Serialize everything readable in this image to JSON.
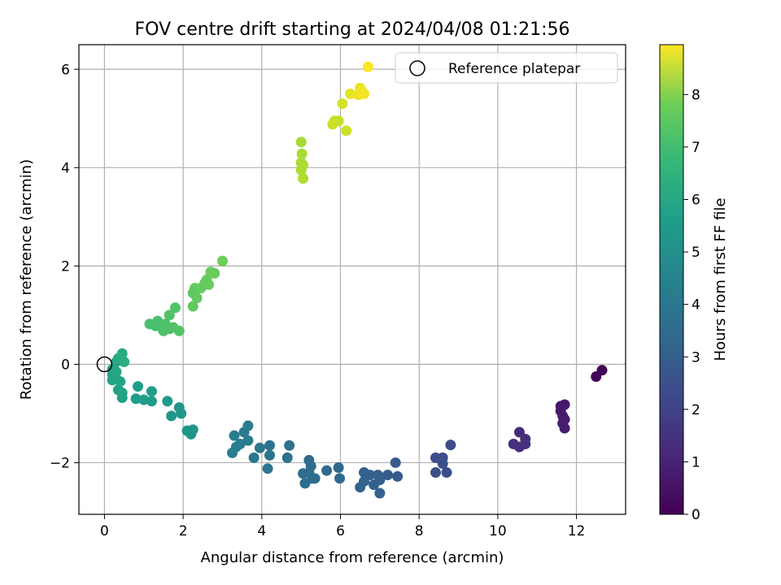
{
  "chart_data": {
    "type": "scatter",
    "title": "FOV centre drift starting at 2024/04/08 01:21:56",
    "xlabel": "Angular distance from reference (arcmin)",
    "ylabel": "Rotation from reference (arcmin)",
    "xlim": [
      -0.65,
      13.25
    ],
    "ylim": [
      -3.05,
      6.5
    ],
    "x_ticks": [
      0,
      2,
      4,
      6,
      8,
      10,
      12
    ],
    "y_ticks": [
      -2,
      0,
      2,
      4,
      6
    ],
    "x_tick_labels": [
      "0",
      "2",
      "4",
      "6",
      "8",
      "10",
      "12"
    ],
    "y_tick_labels": [
      "−2",
      "0",
      "2",
      "4",
      "6"
    ],
    "grid": true,
    "legend": {
      "placement": "top-right",
      "entries": [
        "Reference platepar"
      ]
    },
    "reference_point": {
      "x": 0,
      "y": 0
    },
    "colorbar": {
      "label": "Hours from first FF file",
      "colormap": "viridis",
      "range": [
        0,
        8.95
      ],
      "ticks": [
        0,
        1,
        2,
        3,
        4,
        5,
        6,
        7,
        8
      ],
      "tick_labels": [
        "0",
        "1",
        "2",
        "3",
        "4",
        "5",
        "6",
        "7",
        "8"
      ]
    },
    "points": [
      {
        "x": 12.65,
        "y": -0.12,
        "h": 0.05
      },
      {
        "x": 12.5,
        "y": -0.25,
        "h": 0.1
      },
      {
        "x": 11.6,
        "y": -0.85,
        "h": 0.6
      },
      {
        "x": 11.7,
        "y": -0.82,
        "h": 0.62
      },
      {
        "x": 11.6,
        "y": -0.95,
        "h": 0.65
      },
      {
        "x": 11.65,
        "y": -1.05,
        "h": 0.68
      },
      {
        "x": 11.7,
        "y": -1.12,
        "h": 0.7
      },
      {
        "x": 11.65,
        "y": -1.2,
        "h": 0.72
      },
      {
        "x": 11.7,
        "y": -1.3,
        "h": 0.75
      },
      {
        "x": 10.55,
        "y": -1.38,
        "h": 1.15
      },
      {
        "x": 10.4,
        "y": -1.62,
        "h": 1.2
      },
      {
        "x": 10.55,
        "y": -1.68,
        "h": 1.22
      },
      {
        "x": 10.7,
        "y": -1.52,
        "h": 1.25
      },
      {
        "x": 10.7,
        "y": -1.62,
        "h": 1.28
      },
      {
        "x": 8.8,
        "y": -1.64,
        "h": 2.05
      },
      {
        "x": 8.7,
        "y": -2.2,
        "h": 2.08
      },
      {
        "x": 8.6,
        "y": -1.9,
        "h": 2.1
      },
      {
        "x": 8.42,
        "y": -1.9,
        "h": 2.12
      },
      {
        "x": 8.6,
        "y": -2.02,
        "h": 2.15
      },
      {
        "x": 8.42,
        "y": -2.2,
        "h": 2.18
      },
      {
        "x": 7.4,
        "y": -2.0,
        "h": 2.6
      },
      {
        "x": 7.45,
        "y": -2.28,
        "h": 2.62
      },
      {
        "x": 7.2,
        "y": -2.25,
        "h": 2.64
      },
      {
        "x": 7.0,
        "y": -2.35,
        "h": 2.66
      },
      {
        "x": 6.95,
        "y": -2.25,
        "h": 2.68
      },
      {
        "x": 6.75,
        "y": -2.25,
        "h": 2.7
      },
      {
        "x": 6.6,
        "y": -2.2,
        "h": 2.72
      },
      {
        "x": 6.85,
        "y": -2.45,
        "h": 2.74
      },
      {
        "x": 7.0,
        "y": -2.62,
        "h": 2.76
      },
      {
        "x": 6.6,
        "y": -2.38,
        "h": 2.78
      },
      {
        "x": 6.5,
        "y": -2.5,
        "h": 2.8
      },
      {
        "x": 5.95,
        "y": -2.1,
        "h": 3.0
      },
      {
        "x": 5.98,
        "y": -2.32,
        "h": 3.02
      },
      {
        "x": 5.65,
        "y": -2.16,
        "h": 3.05
      },
      {
        "x": 5.35,
        "y": -2.32,
        "h": 3.08
      },
      {
        "x": 5.2,
        "y": -1.95,
        "h": 3.1
      },
      {
        "x": 5.25,
        "y": -2.07,
        "h": 3.12
      },
      {
        "x": 5.05,
        "y": -2.22,
        "h": 3.14
      },
      {
        "x": 5.2,
        "y": -2.2,
        "h": 3.16
      },
      {
        "x": 5.28,
        "y": -2.32,
        "h": 3.18
      },
      {
        "x": 5.1,
        "y": -2.42,
        "h": 3.2
      },
      {
        "x": 4.7,
        "y": -1.65,
        "h": 3.35
      },
      {
        "x": 4.65,
        "y": -1.9,
        "h": 3.37
      },
      {
        "x": 4.2,
        "y": -1.65,
        "h": 3.45
      },
      {
        "x": 4.2,
        "y": -1.85,
        "h": 3.47
      },
      {
        "x": 4.15,
        "y": -2.12,
        "h": 3.5
      },
      {
        "x": 3.95,
        "y": -1.7,
        "h": 3.55
      },
      {
        "x": 3.8,
        "y": -1.9,
        "h": 3.58
      },
      {
        "x": 3.65,
        "y": -1.25,
        "h": 3.7
      },
      {
        "x": 3.55,
        "y": -1.38,
        "h": 3.72
      },
      {
        "x": 3.65,
        "y": -1.55,
        "h": 3.74
      },
      {
        "x": 3.45,
        "y": -1.62,
        "h": 3.76
      },
      {
        "x": 3.3,
        "y": -1.45,
        "h": 3.78
      },
      {
        "x": 3.35,
        "y": -1.68,
        "h": 3.8
      },
      {
        "x": 3.25,
        "y": -1.8,
        "h": 3.82
      },
      {
        "x": 2.25,
        "y": -1.33,
        "h": 4.6
      },
      {
        "x": 2.1,
        "y": -1.35,
        "h": 4.62
      },
      {
        "x": 2.2,
        "y": -1.42,
        "h": 4.64
      },
      {
        "x": 1.9,
        "y": -0.88,
        "h": 4.7
      },
      {
        "x": 1.95,
        "y": -1.0,
        "h": 4.72
      },
      {
        "x": 1.7,
        "y": -1.05,
        "h": 4.74
      },
      {
        "x": 1.6,
        "y": -0.75,
        "h": 4.76
      },
      {
        "x": 1.2,
        "y": -0.55,
        "h": 4.9
      },
      {
        "x": 1.2,
        "y": -0.75,
        "h": 4.92
      },
      {
        "x": 1.0,
        "y": -0.72,
        "h": 4.94
      },
      {
        "x": 0.85,
        "y": -0.45,
        "h": 4.96
      },
      {
        "x": 0.8,
        "y": -0.7,
        "h": 4.98
      },
      {
        "x": 0.45,
        "y": -0.68,
        "h": 5.1
      },
      {
        "x": 0.45,
        "y": -0.58,
        "h": 5.12
      },
      {
        "x": 0.35,
        "y": -0.52,
        "h": 5.14
      },
      {
        "x": 0.4,
        "y": -0.35,
        "h": 5.16
      },
      {
        "x": 0.3,
        "y": -0.3,
        "h": 5.18
      },
      {
        "x": 0.2,
        "y": -0.32,
        "h": 5.2
      },
      {
        "x": 0.2,
        "y": -0.2,
        "h": 5.22
      },
      {
        "x": 0.2,
        "y": -0.1,
        "h": 5.24
      },
      {
        "x": 0.3,
        "y": -0.15,
        "h": 5.26
      },
      {
        "x": 0.3,
        "y": 0.05,
        "h": 5.28
      },
      {
        "x": 0.35,
        "y": 0.12,
        "h": 5.45
      },
      {
        "x": 0.45,
        "y": 0.22,
        "h": 5.5
      },
      {
        "x": 0.5,
        "y": 0.05,
        "h": 5.55
      },
      {
        "x": 1.15,
        "y": 0.82,
        "h": 6.3
      },
      {
        "x": 1.3,
        "y": 0.78,
        "h": 6.32
      },
      {
        "x": 1.35,
        "y": 0.88,
        "h": 6.34
      },
      {
        "x": 1.45,
        "y": 0.75,
        "h": 6.36
      },
      {
        "x": 1.5,
        "y": 0.68,
        "h": 6.38
      },
      {
        "x": 1.55,
        "y": 0.82,
        "h": 6.4
      },
      {
        "x": 1.65,
        "y": 0.72,
        "h": 6.42
      },
      {
        "x": 1.65,
        "y": 1.0,
        "h": 6.44
      },
      {
        "x": 1.75,
        "y": 0.75,
        "h": 6.46
      },
      {
        "x": 1.8,
        "y": 1.15,
        "h": 6.48
      },
      {
        "x": 1.9,
        "y": 0.68,
        "h": 6.5
      },
      {
        "x": 2.25,
        "y": 1.45,
        "h": 6.7
      },
      {
        "x": 2.3,
        "y": 1.55,
        "h": 6.72
      },
      {
        "x": 2.25,
        "y": 1.18,
        "h": 6.74
      },
      {
        "x": 2.35,
        "y": 1.35,
        "h": 6.76
      },
      {
        "x": 2.45,
        "y": 1.55,
        "h": 6.78
      },
      {
        "x": 2.55,
        "y": 1.65,
        "h": 6.8
      },
      {
        "x": 2.6,
        "y": 1.72,
        "h": 6.82
      },
      {
        "x": 2.65,
        "y": 1.62,
        "h": 6.84
      },
      {
        "x": 2.7,
        "y": 1.88,
        "h": 6.86
      },
      {
        "x": 2.8,
        "y": 1.85,
        "h": 6.88
      },
      {
        "x": 3.0,
        "y": 2.1,
        "h": 6.95
      },
      {
        "x": 5.0,
        "y": 4.52,
        "h": 7.75
      },
      {
        "x": 5.02,
        "y": 4.28,
        "h": 7.78
      },
      {
        "x": 5.0,
        "y": 4.1,
        "h": 7.8
      },
      {
        "x": 5.05,
        "y": 4.05,
        "h": 7.82
      },
      {
        "x": 5.0,
        "y": 3.95,
        "h": 7.84
      },
      {
        "x": 5.05,
        "y": 3.78,
        "h": 7.86
      },
      {
        "x": 5.85,
        "y": 4.95,
        "h": 8.2
      },
      {
        "x": 5.95,
        "y": 4.95,
        "h": 8.22
      },
      {
        "x": 5.8,
        "y": 4.88,
        "h": 8.24
      },
      {
        "x": 6.15,
        "y": 4.75,
        "h": 8.26
      },
      {
        "x": 6.05,
        "y": 5.3,
        "h": 8.4
      },
      {
        "x": 6.25,
        "y": 5.5,
        "h": 8.6
      },
      {
        "x": 6.5,
        "y": 5.62,
        "h": 8.65
      },
      {
        "x": 6.55,
        "y": 5.55,
        "h": 8.7
      },
      {
        "x": 6.45,
        "y": 5.48,
        "h": 8.75
      },
      {
        "x": 6.6,
        "y": 5.5,
        "h": 8.8
      },
      {
        "x": 6.7,
        "y": 6.05,
        "h": 8.9
      }
    ]
  }
}
